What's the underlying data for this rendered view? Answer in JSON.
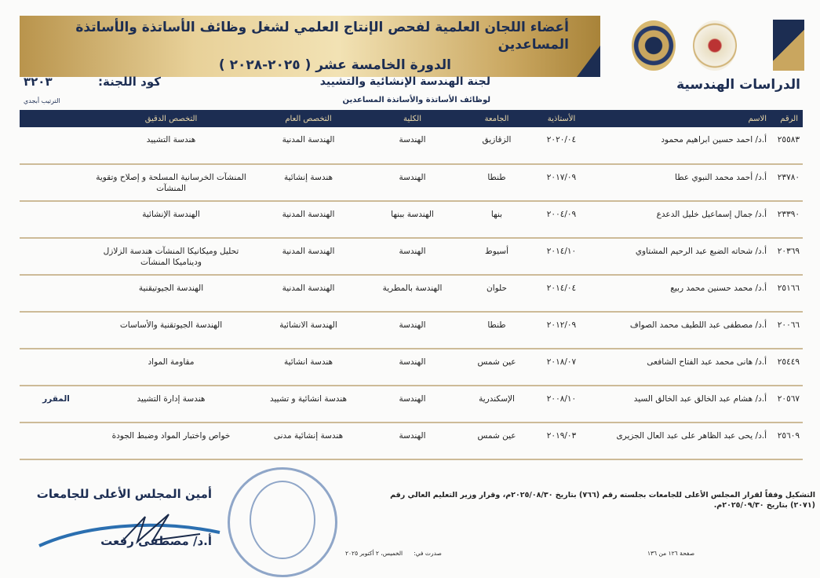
{
  "header": {
    "title_line1": "أعضاء اللجان العلمية لفحص الإنتاج العلمي لشغل وظائف الأساتذة والأساتذة المساعدين",
    "title_line2": "الدورة الخامسة عشر ( ٢٠٢٥-٢٠٢٨ )",
    "department": "الدراسات الهندسية",
    "committee_name": "لجنة الهندسة الإنشائية والتشييد",
    "committee_sub": "لوظائف الأساتذة والأساتذة المساعدين",
    "committee_code_label": "كود اللجنة:",
    "committee_code": "٣٢٠٣",
    "order_note": "الترتيب أبجدي",
    "logo_text": "YEARS OF EXCELLENCE",
    "colors": {
      "navy": "#1c2d52",
      "gold": "#c9a65f"
    }
  },
  "table": {
    "columns": [
      "الرقم",
      "الاسم",
      "الأستاذية",
      "الجامعة",
      "الكلية",
      "التخصص العام",
      "التخصص الدقيق",
      ""
    ],
    "rows": [
      {
        "id": "٢٥٥٨٣",
        "name": "أ.د/ احمد حسين ابراهيم محمود",
        "prof": "٢٠٢٠/٠٤",
        "univ": "الزقازيق",
        "faculty": "الهندسة",
        "general": "الهندسة المدنية",
        "specific": "هندسة التشييد",
        "note": ""
      },
      {
        "id": "٢٣٧٨٠",
        "name": "أ.د/ أحمد محمد النبوي عطا",
        "prof": "٢٠١٧/٠٩",
        "univ": "طنطا",
        "faculty": "الهندسة",
        "general": "هندسة إنشائية",
        "specific": "المنشآت الخرسانية المسلحة و إصلاح وتقوية المنشآت",
        "note": ""
      },
      {
        "id": "٢٣٣٩٠",
        "name": "أ.د/ جمال إسماعيل خليل الدعدع",
        "prof": "٢٠٠٤/٠٩",
        "univ": "بنها",
        "faculty": "الهندسة ببنها",
        "general": "الهندسة المدنية",
        "specific": "الهندسة الإنشائية",
        "note": ""
      },
      {
        "id": "٢٠٣٦٩",
        "name": "أ.د/ شحاته الضبع عبد الرحيم المشتاوي",
        "prof": "٢٠١٤/١٠",
        "univ": "أسيوط",
        "faculty": "الهندسة",
        "general": "الهندسة المدنية",
        "specific": "تحليل وميكانيكا المنشآت هندسة الزلازل وديناميكا المنشآت",
        "note": ""
      },
      {
        "id": "٢٥١٦٦",
        "name": "أ.د/ محمد حسنين محمد ربيع",
        "prof": "٢٠١٤/٠٤",
        "univ": "حلوان",
        "faculty": "الهندسة بالمطرية",
        "general": "الهندسة المدنية",
        "specific": "الهندسة الجيوتيقنية",
        "note": ""
      },
      {
        "id": "٢٠٠٦٦",
        "name": "أ.د/ مصطفى عبد اللطيف محمد الصواف",
        "prof": "٢٠١٢/٠٩",
        "univ": "طنطا",
        "faculty": "الهندسة",
        "general": "الهندسة الانشائية",
        "specific": "الهندسة الجيوتقنية والأساسات",
        "note": ""
      },
      {
        "id": "٢٥٤٤٩",
        "name": "أ.د/ هانى محمد عبد الفتاح الشافعى",
        "prof": "٢٠١٨/٠٧",
        "univ": "عين شمس",
        "faculty": "الهندسة",
        "general": "هندسة انشائية",
        "specific": "مقاومة المواد",
        "note": ""
      },
      {
        "id": "٢٠٥٦٧",
        "name": "أ.د/ هشام عبد الخالق عبد الخالق السيد",
        "prof": "٢٠٠٨/١٠",
        "univ": "الإسكندرية",
        "faculty": "الهندسة",
        "general": "هندسة انشائية و تشييد",
        "specific": "هندسة إدارة التشييد",
        "note": "المقرر"
      },
      {
        "id": "٢٥٦٠٩",
        "name": "أ.د/ يحى عبد الظاهر على عبد العال الجزيرى",
        "prof": "٢٠١٩/٠٣",
        "univ": "عين شمس",
        "faculty": "الهندسة",
        "general": "هندسة إنشائية مدنى",
        "specific": "خواص واختبار المواد وضبط الجودة",
        "note": ""
      }
    ]
  },
  "footer": {
    "decree": "التشكيل وفقاً لقرار المجلس الأعلى للجامعات بجلسته رقم (٧٦٦) بتاريخ ٢٠٢٥/٠٨/٣٠م، وقرار وزير التعليم العالي رقم (٢٠٧١) بتاريخ ٢٠٢٥/٠٩/٣٠م.",
    "secretary_title": "أمين المجلس الأعلى للجامعات",
    "secretary_name": "أ.د/ مصطفى رفعت",
    "issued_label": "صدرت في:",
    "issued_date": "الخميس، ٢ أكتوبر ٢٠٢٥",
    "page": "صفحة ١٢٦ من ١٣٦"
  }
}
